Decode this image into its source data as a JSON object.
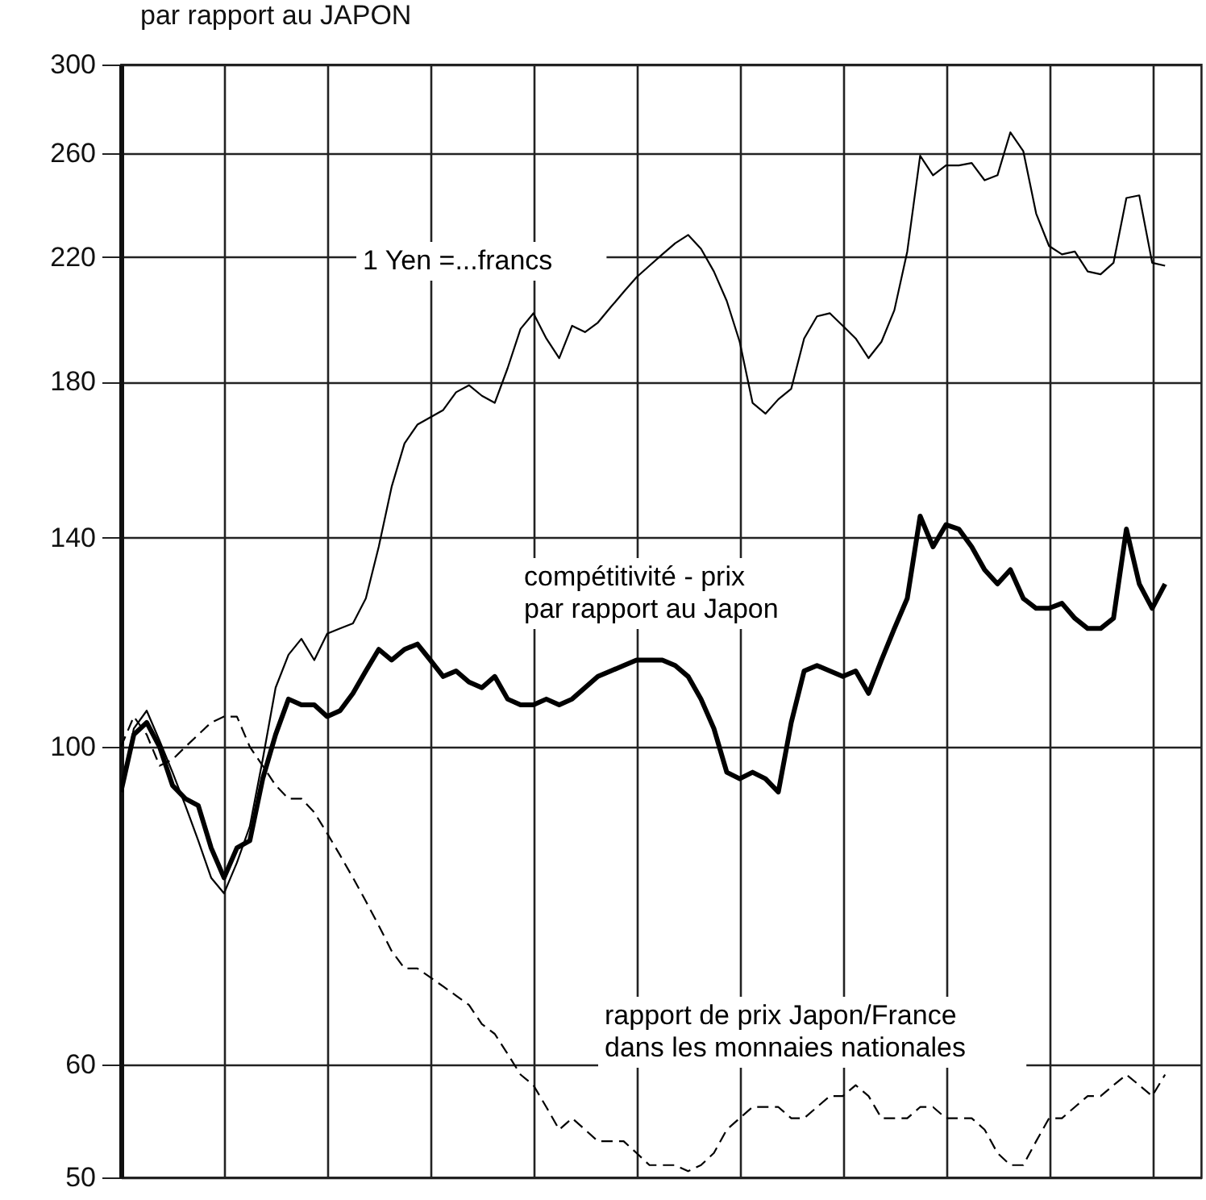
{
  "chart_data": {
    "type": "line",
    "title": "par rapport au JAPON",
    "categories": [
      null,
      null,
      null,
      null,
      null,
      null,
      null,
      null,
      null,
      null,
      null,
      null,
      null,
      null,
      null,
      null,
      null,
      null,
      null,
      null,
      null,
      null,
      null,
      null,
      null,
      null,
      null,
      null,
      null,
      null,
      null,
      null,
      null,
      null,
      null,
      null,
      null,
      null,
      null,
      null,
      null,
      null,
      null,
      null,
      null,
      null,
      null,
      null,
      null,
      null,
      null,
      null,
      null,
      null,
      null,
      null,
      null,
      null,
      null,
      null,
      null,
      null,
      null,
      null,
      null,
      null,
      null,
      null,
      null,
      null,
      null,
      null,
      null,
      null,
      null,
      null,
      null,
      null,
      null,
      null,
      null,
      null
    ],
    "ylim": [
      50,
      300
    ],
    "yticks": [
      50,
      60,
      100,
      140,
      180,
      220,
      260,
      300
    ],
    "log": "y",
    "grid": true,
    "tick_labels": "y",
    "series": [
      {
        "name": "1 Yen =...francs",
        "color": "#000000",
        "line_style": "solid",
        "values": [
          93,
          103,
          106,
          101,
          96,
          91,
          86,
          81,
          79,
          83,
          88,
          98,
          110,
          116,
          119,
          115,
          120,
          121,
          122,
          127,
          138,
          152,
          163,
          168,
          170,
          172,
          177,
          179,
          176,
          174,
          184,
          196,
          201,
          193,
          187,
          197,
          195,
          198,
          203,
          208,
          213,
          217,
          221,
          225,
          228,
          223,
          215,
          205,
          192,
          174,
          171,
          175,
          178,
          193,
          200,
          201,
          197,
          193,
          187,
          192,
          202,
          222,
          259,
          251,
          255,
          255,
          256,
          249,
          251,
          269,
          261,
          236,
          224,
          221,
          222,
          215,
          214,
          218,
          242,
          243,
          218,
          217
        ]
      },
      {
        "name": "compétitivité - prix\npar rapport au Japon",
        "color": "#000000",
        "line_style": "solid",
        "values": [
          93,
          102,
          104,
          100,
          94,
          92,
          91,
          85,
          81,
          85,
          86,
          95,
          102,
          108,
          107,
          107,
          105,
          106,
          109,
          113,
          117,
          115,
          117,
          118,
          115,
          112,
          113,
          111,
          110,
          112,
          108,
          107,
          107,
          108,
          107,
          108,
          110,
          112,
          113,
          114,
          115,
          115,
          115,
          114,
          112,
          108,
          103,
          96,
          95,
          96,
          95,
          93,
          104,
          113,
          114,
          113,
          112,
          113,
          109,
          115,
          121,
          127,
          145,
          138,
          143,
          142,
          138,
          133,
          130,
          133,
          127,
          125,
          125,
          126,
          123,
          121,
          121,
          123,
          142,
          130,
          125,
          130
        ]
      },
      {
        "name": "rapport de prix Japon/France\ndans les monnaies nationales",
        "color": "#000000",
        "line_style": "dashed",
        "values": [
          100,
          105,
          102,
          97,
          98,
          100,
          102,
          104,
          105,
          105,
          100,
          97,
          94,
          92,
          92,
          90,
          87,
          84,
          81,
          78,
          75,
          72,
          70,
          70,
          69,
          68,
          67,
          66,
          64,
          63,
          61,
          59,
          58,
          56,
          54,
          55,
          54,
          53,
          53,
          53,
          52,
          51,
          51,
          51,
          50.5,
          51,
          52,
          54,
          55,
          56,
          56,
          56,
          55,
          55,
          56,
          57,
          57,
          58,
          57,
          55,
          55,
          55,
          56,
          56,
          55,
          55,
          55,
          54,
          52,
          51,
          51,
          53,
          55,
          55,
          56,
          57,
          57,
          58,
          59,
          58,
          57,
          59
        ]
      }
    ]
  }
}
